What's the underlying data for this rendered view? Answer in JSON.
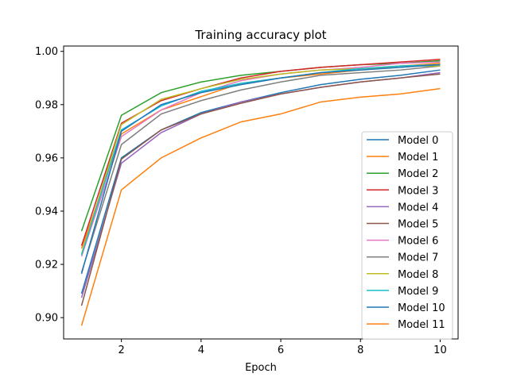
{
  "chart_data": {
    "type": "line",
    "title": "Training accuracy plot",
    "xlabel": "Epoch",
    "ylabel": "",
    "xlim": [
      0.55,
      10.45
    ],
    "ylim": [
      0.892,
      1.002
    ],
    "xticks": [
      2,
      4,
      6,
      8,
      10
    ],
    "yticks": [
      0.9,
      0.92,
      0.94,
      0.96,
      0.98,
      1.0
    ],
    "ytick_labels": [
      "0.90",
      "0.92",
      "0.94",
      "0.96",
      "0.98",
      "1.00"
    ],
    "grid": false,
    "legend": "lower-right",
    "x": [
      1,
      2,
      3,
      4,
      5,
      6,
      7,
      8,
      9,
      10
    ],
    "series": [
      {
        "name": "Model 0",
        "color": "#1f77b4",
        "values": [
          0.909,
          0.96,
          0.9705,
          0.977,
          0.981,
          0.9845,
          0.9875,
          0.9895,
          0.991,
          0.993
        ]
      },
      {
        "name": "Model 1",
        "color": "#ff7f0e",
        "values": [
          0.926,
          0.969,
          0.978,
          0.983,
          0.988,
          0.99,
          0.9915,
          0.993,
          0.9945,
          0.9955
        ]
      },
      {
        "name": "Model 2",
        "color": "#2ca02c",
        "values": [
          0.9325,
          0.976,
          0.9845,
          0.9885,
          0.991,
          0.9925,
          0.994,
          0.995,
          0.9955,
          0.9965
        ]
      },
      {
        "name": "Model 3",
        "color": "#d62728",
        "values": [
          0.927,
          0.973,
          0.9815,
          0.986,
          0.99,
          0.9925,
          0.994,
          0.995,
          0.996,
          0.997
        ]
      },
      {
        "name": "Model 4",
        "color": "#9467bd",
        "values": [
          0.9075,
          0.958,
          0.9695,
          0.9765,
          0.981,
          0.984,
          0.9865,
          0.9885,
          0.99,
          0.992
        ]
      },
      {
        "name": "Model 5",
        "color": "#8c564b",
        "values": [
          0.9045,
          0.9595,
          0.9705,
          0.9765,
          0.9805,
          0.984,
          0.9865,
          0.9885,
          0.99,
          0.9915
        ]
      },
      {
        "name": "Model 6",
        "color": "#e377c2",
        "values": [
          0.923,
          0.968,
          0.978,
          0.9845,
          0.989,
          0.9915,
          0.993,
          0.994,
          0.9955,
          0.996
        ]
      },
      {
        "name": "Model 7",
        "color": "#7f7f7f",
        "values": [
          0.917,
          0.965,
          0.9765,
          0.9815,
          0.9855,
          0.9885,
          0.991,
          0.992,
          0.993,
          0.9945
        ]
      },
      {
        "name": "Model 8",
        "color": "#bcbd22",
        "values": [
          0.924,
          0.9725,
          0.982,
          0.986,
          0.9895,
          0.9915,
          0.993,
          0.9935,
          0.9945,
          0.9945
        ]
      },
      {
        "name": "Model 9",
        "color": "#17becf",
        "values": [
          0.9235,
          0.9705,
          0.9795,
          0.985,
          0.988,
          0.99,
          0.992,
          0.9935,
          0.9945,
          0.995
        ]
      },
      {
        "name": "Model 10",
        "color": "#1f77b4",
        "values": [
          0.9165,
          0.97,
          0.98,
          0.9845,
          0.9875,
          0.99,
          0.992,
          0.993,
          0.994,
          0.995
        ]
      },
      {
        "name": "Model 11",
        "color": "#ff7f0e",
        "values": [
          0.897,
          0.948,
          0.96,
          0.9675,
          0.9735,
          0.9765,
          0.981,
          0.9828,
          0.984,
          0.986
        ]
      }
    ]
  }
}
